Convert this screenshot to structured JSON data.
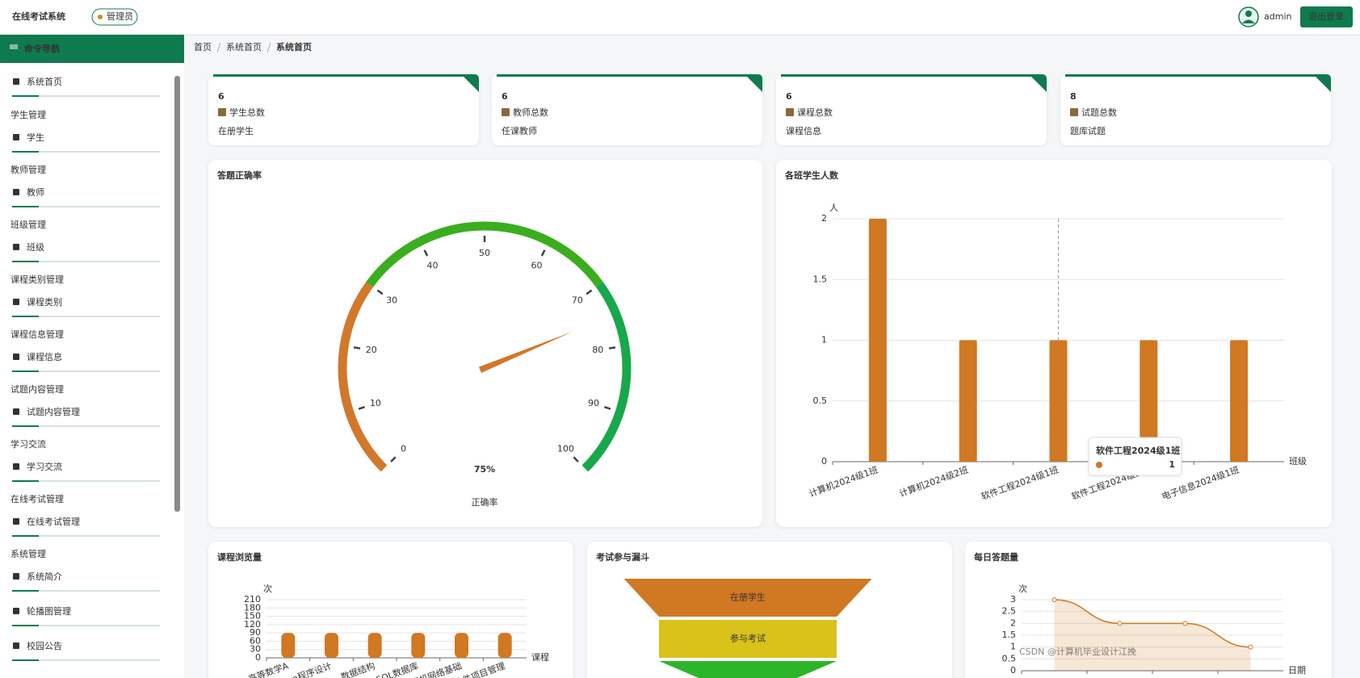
{
  "header": {
    "title": "在线考试系统",
    "role": "管理员",
    "user": "admin",
    "logout": "退出登录"
  },
  "sidebar": {
    "title": "命令导航",
    "groups": [
      {
        "items": [
          "系统首页"
        ]
      },
      {
        "heading": "学生管理",
        "items": [
          "学生"
        ]
      },
      {
        "heading": "教师管理",
        "items": [
          "教师"
        ]
      },
      {
        "heading": "班级管理",
        "items": [
          "班级"
        ]
      },
      {
        "heading": "课程类别管理",
        "items": [
          "课程类别"
        ]
      },
      {
        "heading": "课程信息管理",
        "items": [
          "课程信息"
        ]
      },
      {
        "heading": "试题内容管理",
        "items": [
          "试题内容管理"
        ]
      },
      {
        "heading": "学习交流",
        "items": [
          "学习交流"
        ]
      },
      {
        "heading": "在线考试管理",
        "items": [
          "在线考试管理"
        ]
      },
      {
        "heading": "系统管理",
        "items": [
          "系统简介",
          "轮播图管理",
          "校园公告"
        ]
      }
    ]
  },
  "breadcrumb": [
    "首页",
    "系统首页",
    "系统首页"
  ],
  "stats": [
    {
      "value": 6,
      "label": "学生总数",
      "note": "在册学生"
    },
    {
      "value": 6,
      "label": "教师总数",
      "note": "任课教师"
    },
    {
      "value": 6,
      "label": "课程总数",
      "note": "课程信息"
    },
    {
      "value": 8,
      "label": "试题总数",
      "note": "题库试题"
    }
  ],
  "charts": [
    {
      "type": "gauge",
      "title": "答题正确率",
      "name": "正确率",
      "value": 75,
      "value_label": "75%",
      "range": [
        0,
        100
      ],
      "ticks": [
        0,
        10,
        20,
        30,
        40,
        50,
        60,
        70,
        80,
        90,
        100
      ],
      "bands": [
        {
          "to": 30,
          "color": "#d2782a"
        },
        {
          "to": 70,
          "color": "#3aae1e"
        },
        {
          "to": 100,
          "color": "#18a84a"
        }
      ],
      "pointer_color": "#d2782a"
    },
    {
      "type": "bar",
      "title": "各班学生人数",
      "y_label": "人",
      "x_label": "班级",
      "categories": [
        "计算机2024级1班",
        "计算机2024级2班",
        "软件工程2024级1班",
        "软件工程2024级2班",
        "电子信息2024级1班"
      ],
      "values": [
        2,
        1,
        1,
        1,
        1
      ],
      "color": "#d07822",
      "ylim": [
        0,
        2
      ],
      "yticks": [
        0,
        0.5,
        1,
        1.5,
        2
      ],
      "grid": true,
      "hover": 2
    },
    {
      "type": "bar",
      "title": "课程浏览量",
      "y_label": "次",
      "x_label": "课程",
      "categories": [
        "高等数学A",
        "Java程序设计",
        "数据结构",
        "MySQL数据库",
        "计算机网络基础",
        "软件项目管理"
      ],
      "values": [
        90,
        90,
        90,
        90,
        90,
        90
      ],
      "color": "#d07822",
      "ylim": [
        0,
        210
      ],
      "yticks": [
        0,
        30,
        60,
        90,
        120,
        150,
        180,
        210
      ],
      "grid": true
    },
    {
      "type": "funnel",
      "title": "考试参与漏斗",
      "categories": [
        "在册学生",
        "参与考试",
        null
      ],
      "values": [
        6,
        4.3,
        4.3
      ],
      "colors": [
        "#d07822",
        "#d9c21a",
        "#2db52a"
      ]
    },
    {
      "type": "line",
      "title": "每日答题量",
      "y_label": "次",
      "x_label": "日期",
      "categories": [
        null,
        null,
        null,
        null
      ],
      "values": [
        3,
        2,
        2,
        1
      ],
      "color": "#d07822",
      "ylim": [
        0,
        3
      ],
      "yticks": [
        0,
        0.5,
        1,
        1.5,
        2,
        2.5,
        3
      ],
      "grid": true,
      "area": true
    }
  ],
  "watermark": "CSDN @计算机毕业设计江挽"
}
